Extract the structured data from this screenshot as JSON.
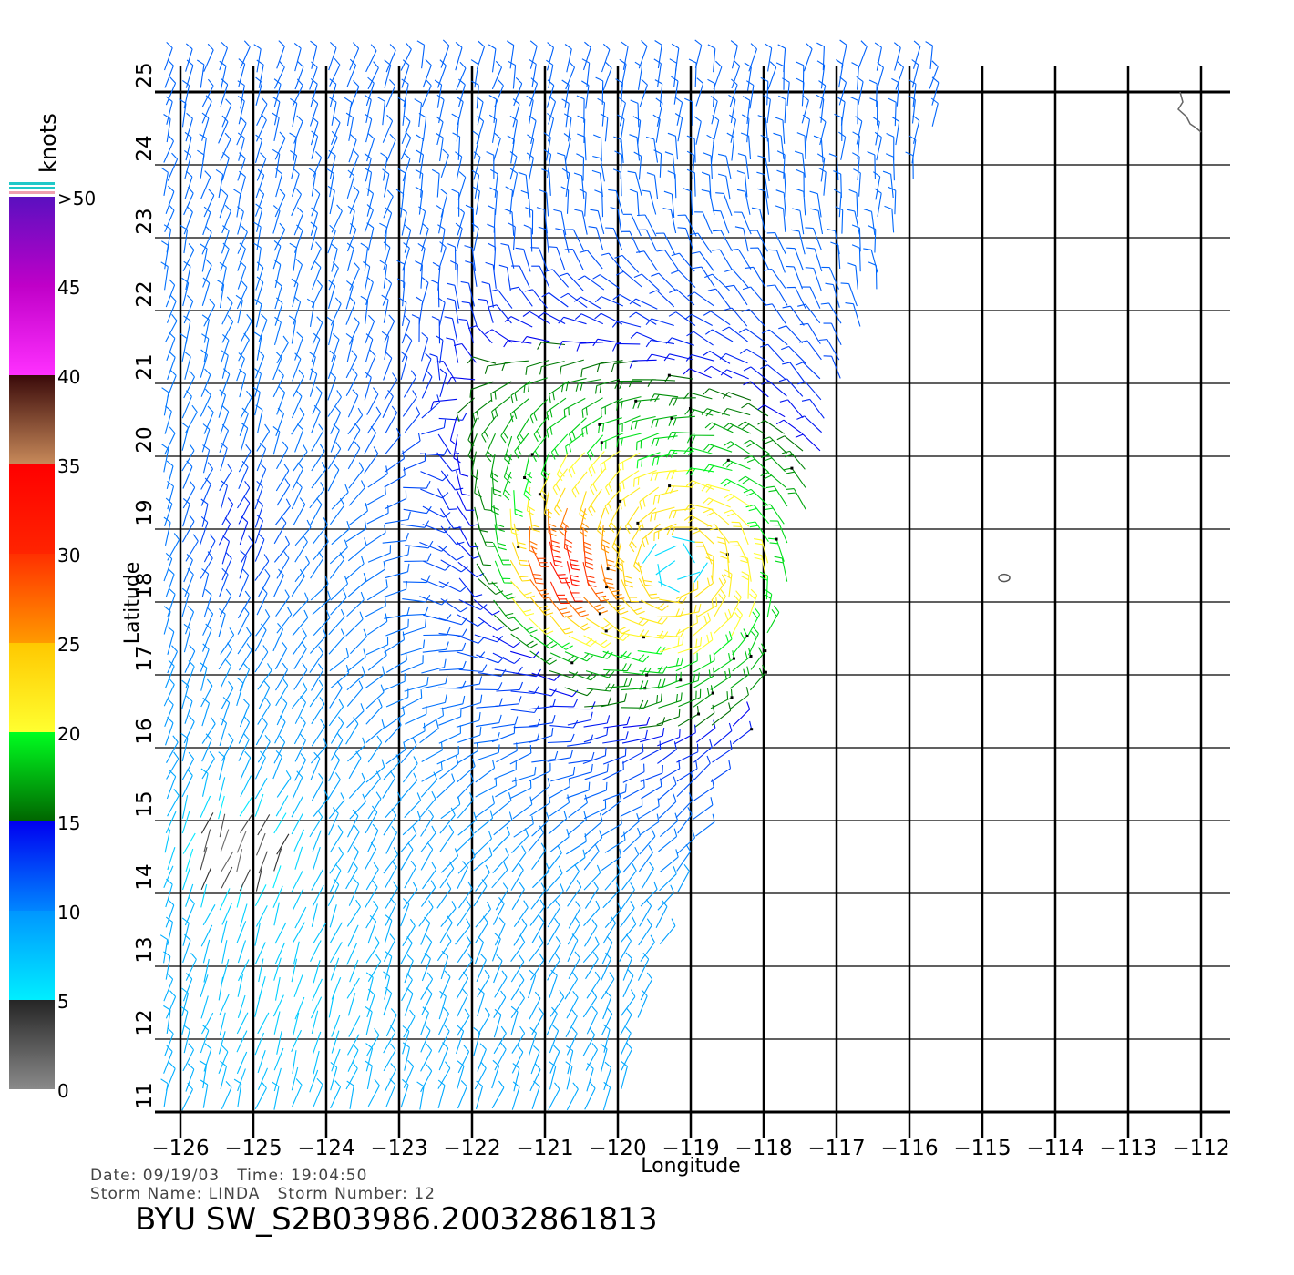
{
  "chart_data": {
    "type": "scatter",
    "plot_kind": "scatterometer wind barbs",
    "xlabel": "Longitude",
    "ylabel": "Latitude",
    "xlim": [
      -126,
      -112
    ],
    "ylim": [
      11,
      25
    ],
    "x_ticks": [
      "−126",
      "−125",
      "−124",
      "−123",
      "−122",
      "−121",
      "−120",
      "−119",
      "−118",
      "−117",
      "−116",
      "−115",
      "−114",
      "−113",
      "−112"
    ],
    "y_ticks": [
      "11",
      "12",
      "13",
      "14",
      "15",
      "16",
      "17",
      "18",
      "19",
      "20",
      "21",
      "22",
      "23",
      "24",
      "25"
    ],
    "grid": true,
    "storm_center": {
      "lon": -119.2,
      "lat": 18.5
    },
    "max_wind_knots": 33,
    "swath_edge": [
      [
        -115.5,
        25
      ],
      [
        -116.9,
        21
      ],
      [
        -117.6,
        18.6
      ],
      [
        -118.0,
        17.2
      ],
      [
        -119.2,
        14.0
      ],
      [
        -120.0,
        11.0
      ]
    ],
    "island": {
      "lon": -114.7,
      "lat": 18.33
    },
    "colorbar": {
      "title": "knots",
      "ticks": [
        "0",
        "5",
        "10",
        "15",
        "20",
        "25",
        "30",
        "35",
        "40",
        "45",
        ">50"
      ],
      "segments": [
        {
          "from": 0,
          "to": 5,
          "colors": [
            "#8a8a8a",
            "#252525"
          ]
        },
        {
          "from": 5,
          "to": 10,
          "colors": [
            "#00eeff",
            "#0096ff"
          ]
        },
        {
          "from": 10,
          "to": 15,
          "colors": [
            "#0086ff",
            "#0000f0"
          ]
        },
        {
          "from": 15,
          "to": 20,
          "colors": [
            "#006400",
            "#00ff20"
          ]
        },
        {
          "from": 20,
          "to": 25,
          "colors": [
            "#ffff30",
            "#ffc800"
          ]
        },
        {
          "from": 25,
          "to": 30,
          "colors": [
            "#ff9a00",
            "#ff3000"
          ]
        },
        {
          "from": 30,
          "to": 35,
          "colors": [
            "#ff2400",
            "#ff0000"
          ]
        },
        {
          "from": 35,
          "to": 40,
          "colors": [
            "#c88a5a",
            "#3a0a0a"
          ]
        },
        {
          "from": 40,
          "to": 45,
          "colors": [
            "#ff30ff",
            "#c000c8"
          ]
        },
        {
          "from": 45,
          "to": 50,
          "colors": [
            "#c000c8",
            "#5a10c0"
          ]
        }
      ]
    }
  },
  "footer": {
    "date_line": "Date: 09/19/03   Time: 19:04:50",
    "storm_line": "Storm Name: LINDA   Storm Number: 12",
    "file_title": "BYU SW_S2B03986.20032861813"
  }
}
